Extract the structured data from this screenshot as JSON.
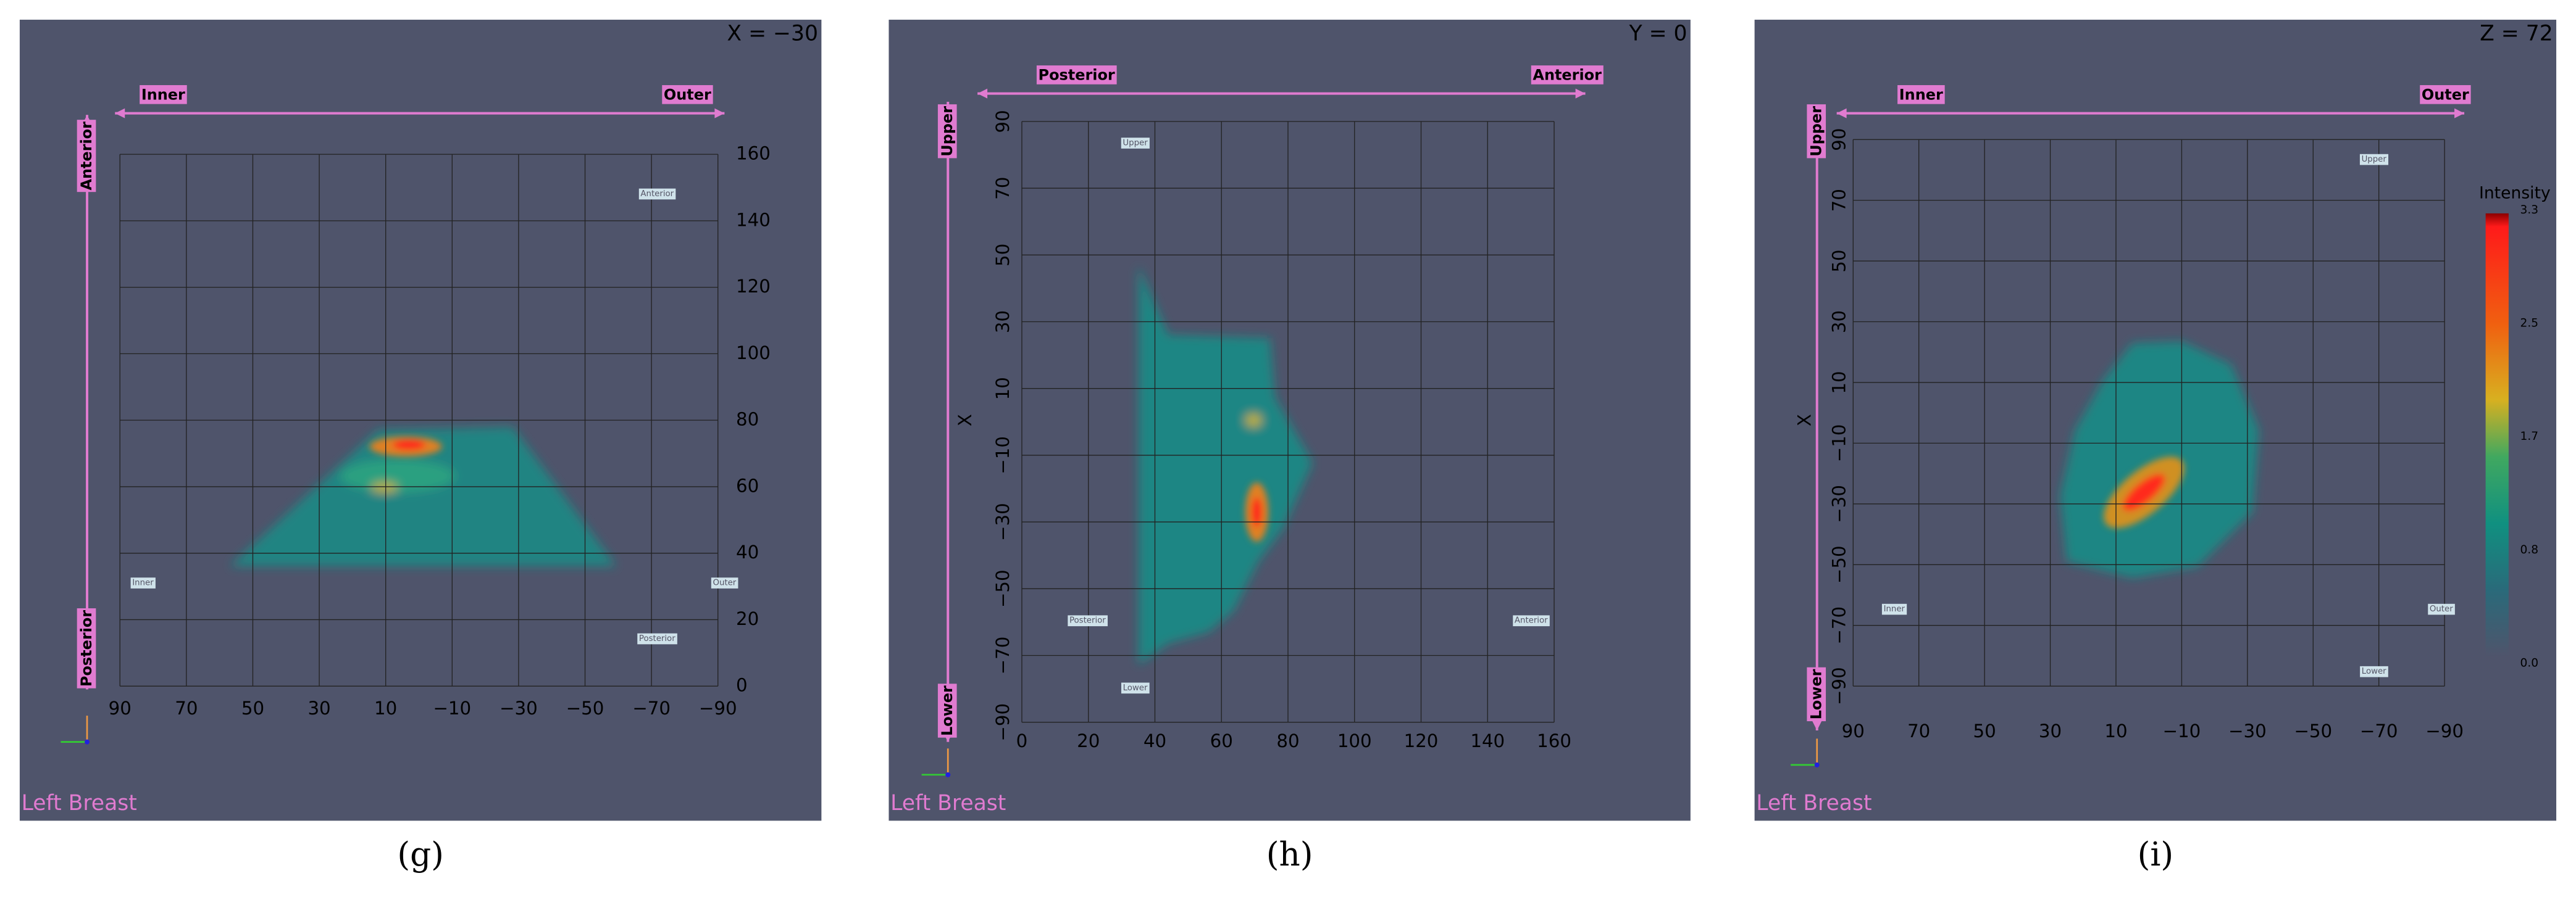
{
  "panels": [
    {
      "corner_label": "X = −30",
      "arrow_labels": {
        "horizontal": [
          "Inner",
          "Outer"
        ],
        "vertical": [
          "Anterior",
          "Posterior"
        ]
      },
      "x_ticks": [
        "90",
        "70",
        "50",
        "30",
        "10",
        "−10",
        "−30",
        "−50",
        "−70",
        "−90"
      ],
      "y_ticks": [
        "160",
        "140",
        "120",
        "100",
        "80",
        "60",
        "40",
        "20",
        "0"
      ],
      "slice_labels": [
        "Anterior",
        "Inner",
        "Outer",
        "Posterior"
      ],
      "watermark": "Left Breast",
      "caption": "(g)"
    },
    {
      "corner_label": "Y = 0",
      "arrow_labels": {
        "horizontal": [
          "Posterior",
          "Anterior"
        ],
        "vertical": [
          "Upper",
          "Lower"
        ]
      },
      "x_ticks": [
        "0",
        "20",
        "40",
        "60",
        "80",
        "100",
        "120",
        "140",
        "160"
      ],
      "y_ticks": [
        "90",
        "70",
        "50",
        "30",
        "10",
        "−10",
        "−30",
        "−50",
        "−70",
        "−90"
      ],
      "axis_title": "X",
      "slice_labels": [
        "Upper",
        "Posterior",
        "Anterior",
        "Lower"
      ],
      "watermark": "Left Breast",
      "caption": "(h)"
    },
    {
      "corner_label": "Z = 72",
      "arrow_labels": {
        "horizontal": [
          "Inner",
          "Outer"
        ],
        "vertical": [
          "Upper",
          "Lower"
        ]
      },
      "x_ticks": [
        "90",
        "70",
        "50",
        "30",
        "10",
        "−10",
        "−30",
        "−50",
        "−70",
        "−90"
      ],
      "y_ticks": [
        "90",
        "70",
        "50",
        "30",
        "10",
        "−10",
        "−30",
        "−50",
        "−70",
        "−90"
      ],
      "axis_title": "X",
      "slice_labels": [
        "Upper",
        "Inner",
        "Outer",
        "Lower"
      ],
      "colorbar": {
        "title": "Intensity",
        "labels": [
          "3.3",
          "2.5",
          "1.7",
          "0.8",
          "0.0"
        ]
      },
      "watermark": "Left Breast",
      "caption": "(i)"
    }
  ]
}
